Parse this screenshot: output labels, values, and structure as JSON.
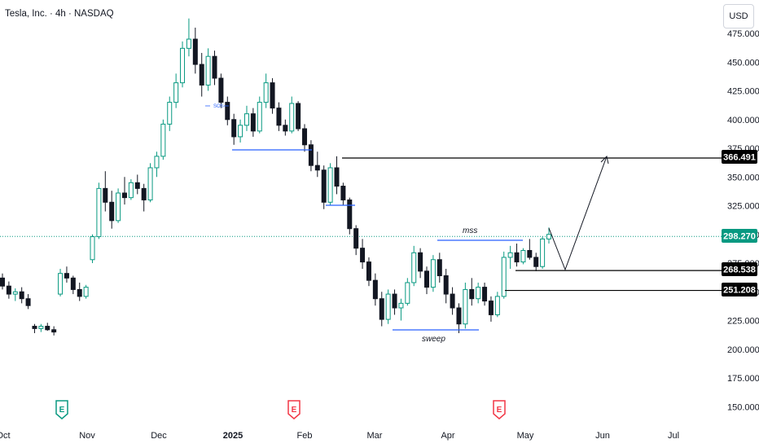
{
  "title": "Tesla, Inc. · 4h · NASDAQ",
  "currency_button": "USD",
  "colors": {
    "up": "#089981",
    "down": "#131722",
    "level_line": "#2962ff",
    "current_price_line": "#089981",
    "tag_black": "#000000",
    "tag_green": "#089981",
    "earnings": "#089981",
    "earnings_red": "#f23645"
  },
  "chart_data": {
    "type": "candlestick",
    "y_axis": {
      "ticks": [
        "475.000",
        "450.000",
        "425.000",
        "400.000",
        "375.000",
        "350.000",
        "325.000",
        "300.000",
        "275.000",
        "250.000",
        "225.000",
        "200.000",
        "175.000",
        "150.000"
      ],
      "range": [
        140,
        482
      ]
    },
    "x_axis": {
      "labels": [
        "Oct",
        "Nov",
        "Dec",
        "2025",
        "Feb",
        "Mar",
        "Apr",
        "May",
        "Jun",
        "Jul"
      ],
      "bold": [
        "2025"
      ]
    },
    "current_price": {
      "label": "298.270",
      "value": 298.27
    },
    "levels": [
      {
        "label": "366.491",
        "value": 366.491
      },
      {
        "label": "268.538",
        "value": 268.538
      },
      {
        "label": "251.208",
        "value": 251.208
      }
    ],
    "annotations": [
      {
        "text": "mss"
      },
      {
        "text": "sweep"
      },
      {
        "text": "SOS"
      }
    ],
    "earnings_markers": [
      {
        "letter": "E",
        "near": "Nov",
        "color": "green"
      },
      {
        "letter": "E",
        "near": "Feb",
        "color": "red"
      },
      {
        "letter": "E",
        "near": "Apr",
        "color": "red"
      }
    ],
    "candles": [
      {
        "o": 262,
        "h": 266,
        "l": 252,
        "c": 255
      },
      {
        "o": 255,
        "h": 259,
        "l": 244,
        "c": 248
      },
      {
        "o": 248,
        "h": 253,
        "l": 242,
        "c": 250
      },
      {
        "o": 250,
        "h": 254,
        "l": 240,
        "c": 244
      },
      {
        "o": 244,
        "h": 248,
        "l": 235,
        "c": 238
      },
      {
        "o": 220,
        "h": 222,
        "l": 214,
        "c": 218
      },
      {
        "o": 218,
        "h": 222,
        "l": 215,
        "c": 220
      },
      {
        "o": 220,
        "h": 223,
        "l": 216,
        "c": 217
      },
      {
        "o": 217,
        "h": 220,
        "l": 212,
        "c": 215
      },
      {
        "o": 248,
        "h": 270,
        "l": 246,
        "c": 266
      },
      {
        "o": 266,
        "h": 272,
        "l": 258,
        "c": 262
      },
      {
        "o": 262,
        "h": 264,
        "l": 248,
        "c": 252
      },
      {
        "o": 252,
        "h": 258,
        "l": 242,
        "c": 246
      },
      {
        "o": 246,
        "h": 256,
        "l": 244,
        "c": 254
      },
      {
        "o": 278,
        "h": 300,
        "l": 275,
        "c": 298
      },
      {
        "o": 298,
        "h": 345,
        "l": 296,
        "c": 340
      },
      {
        "o": 340,
        "h": 355,
        "l": 320,
        "c": 328
      },
      {
        "o": 328,
        "h": 338,
        "l": 305,
        "c": 312
      },
      {
        "o": 312,
        "h": 340,
        "l": 310,
        "c": 336
      },
      {
        "o": 336,
        "h": 350,
        "l": 326,
        "c": 332
      },
      {
        "o": 332,
        "h": 348,
        "l": 330,
        "c": 345
      },
      {
        "o": 345,
        "h": 352,
        "l": 335,
        "c": 340
      },
      {
        "o": 340,
        "h": 344,
        "l": 320,
        "c": 330
      },
      {
        "o": 330,
        "h": 362,
        "l": 328,
        "c": 358
      },
      {
        "o": 358,
        "h": 372,
        "l": 350,
        "c": 368
      },
      {
        "o": 368,
        "h": 400,
        "l": 365,
        "c": 396
      },
      {
        "o": 396,
        "h": 420,
        "l": 390,
        "c": 415
      },
      {
        "o": 415,
        "h": 440,
        "l": 410,
        "c": 432
      },
      {
        "o": 432,
        "h": 468,
        "l": 428,
        "c": 462
      },
      {
        "o": 462,
        "h": 488,
        "l": 455,
        "c": 470
      },
      {
        "o": 470,
        "h": 480,
        "l": 440,
        "c": 448
      },
      {
        "o": 448,
        "h": 458,
        "l": 420,
        "c": 430
      },
      {
        "o": 430,
        "h": 462,
        "l": 425,
        "c": 455
      },
      {
        "o": 455,
        "h": 460,
        "l": 430,
        "c": 436
      },
      {
        "o": 436,
        "h": 440,
        "l": 410,
        "c": 415
      },
      {
        "o": 415,
        "h": 420,
        "l": 395,
        "c": 400
      },
      {
        "o": 400,
        "h": 405,
        "l": 378,
        "c": 385
      },
      {
        "o": 385,
        "h": 400,
        "l": 380,
        "c": 395
      },
      {
        "o": 395,
        "h": 412,
        "l": 390,
        "c": 405
      },
      {
        "o": 405,
        "h": 410,
        "l": 385,
        "c": 390
      },
      {
        "o": 390,
        "h": 420,
        "l": 388,
        "c": 415
      },
      {
        "o": 415,
        "h": 440,
        "l": 410,
        "c": 432
      },
      {
        "o": 432,
        "h": 436,
        "l": 405,
        "c": 410
      },
      {
        "o": 410,
        "h": 415,
        "l": 390,
        "c": 395
      },
      {
        "o": 395,
        "h": 400,
        "l": 386,
        "c": 390
      },
      {
        "o": 390,
        "h": 420,
        "l": 388,
        "c": 414
      },
      {
        "o": 414,
        "h": 416,
        "l": 390,
        "c": 392
      },
      {
        "o": 392,
        "h": 396,
        "l": 372,
        "c": 378
      },
      {
        "o": 378,
        "h": 382,
        "l": 355,
        "c": 360
      },
      {
        "o": 360,
        "h": 372,
        "l": 350,
        "c": 356
      },
      {
        "o": 356,
        "h": 360,
        "l": 322,
        "c": 328
      },
      {
        "o": 328,
        "h": 362,
        "l": 325,
        "c": 358
      },
      {
        "o": 358,
        "h": 368,
        "l": 335,
        "c": 342
      },
      {
        "o": 342,
        "h": 345,
        "l": 325,
        "c": 330
      },
      {
        "o": 330,
        "h": 332,
        "l": 300,
        "c": 305
      },
      {
        "o": 305,
        "h": 308,
        "l": 282,
        "c": 288
      },
      {
        "o": 288,
        "h": 296,
        "l": 270,
        "c": 276
      },
      {
        "o": 276,
        "h": 280,
        "l": 255,
        "c": 260
      },
      {
        "o": 260,
        "h": 266,
        "l": 238,
        "c": 244
      },
      {
        "o": 244,
        "h": 250,
        "l": 220,
        "c": 226
      },
      {
        "o": 226,
        "h": 252,
        "l": 222,
        "c": 248
      },
      {
        "o": 248,
        "h": 252,
        "l": 230,
        "c": 236
      },
      {
        "o": 236,
        "h": 244,
        "l": 225,
        "c": 240
      },
      {
        "o": 240,
        "h": 262,
        "l": 238,
        "c": 258
      },
      {
        "o": 258,
        "h": 290,
        "l": 255,
        "c": 284
      },
      {
        "o": 284,
        "h": 288,
        "l": 262,
        "c": 268
      },
      {
        "o": 268,
        "h": 272,
        "l": 248,
        "c": 254
      },
      {
        "o": 254,
        "h": 282,
        "l": 250,
        "c": 278
      },
      {
        "o": 278,
        "h": 284,
        "l": 258,
        "c": 264
      },
      {
        "o": 264,
        "h": 270,
        "l": 240,
        "c": 248
      },
      {
        "o": 248,
        "h": 254,
        "l": 230,
        "c": 236
      },
      {
        "o": 236,
        "h": 240,
        "l": 214,
        "c": 222
      },
      {
        "o": 222,
        "h": 258,
        "l": 218,
        "c": 252
      },
      {
        "o": 252,
        "h": 262,
        "l": 238,
        "c": 244
      },
      {
        "o": 244,
        "h": 258,
        "l": 240,
        "c": 254
      },
      {
        "o": 254,
        "h": 258,
        "l": 238,
        "c": 242
      },
      {
        "o": 242,
        "h": 246,
        "l": 224,
        "c": 230
      },
      {
        "o": 230,
        "h": 250,
        "l": 228,
        "c": 246
      },
      {
        "o": 246,
        "h": 285,
        "l": 244,
        "c": 280
      },
      {
        "o": 280,
        "h": 290,
        "l": 270,
        "c": 284
      },
      {
        "o": 284,
        "h": 292,
        "l": 272,
        "c": 276
      },
      {
        "o": 276,
        "h": 288,
        "l": 274,
        "c": 286
      },
      {
        "o": 286,
        "h": 296,
        "l": 278,
        "c": 280
      },
      {
        "o": 280,
        "h": 284,
        "l": 268,
        "c": 272
      },
      {
        "o": 272,
        "h": 298,
        "l": 270,
        "c": 296
      },
      {
        "o": 296,
        "h": 306,
        "l": 292,
        "c": 300
      }
    ]
  }
}
